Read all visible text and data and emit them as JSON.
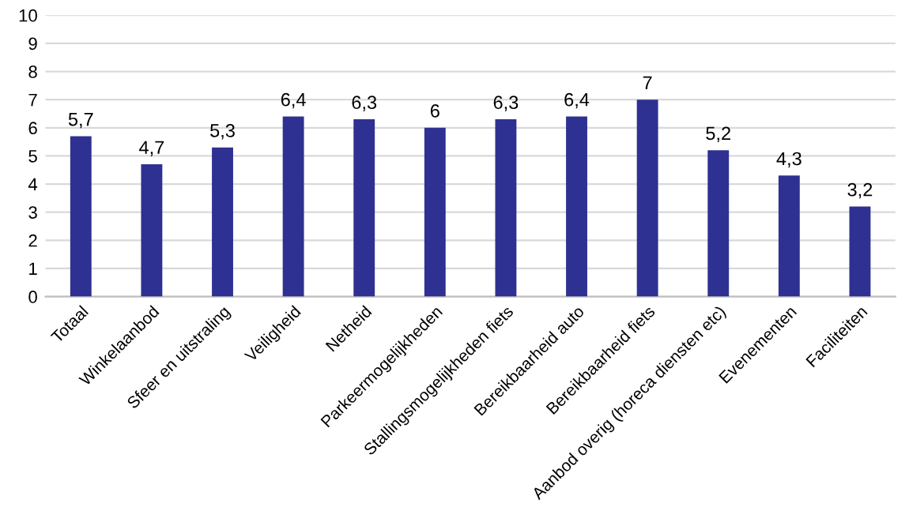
{
  "chart_data": {
    "type": "bar",
    "categories": [
      "Totaal",
      "Winkelaanbod",
      "Sfeer en uitstraling",
      "Veiligheid",
      "Netheid",
      "Parkeermogelijkheden",
      "Stallingsmogelijkheden fiets",
      "Bereikbaarheid auto",
      "Bereikbaarheid fiets",
      "Aanbod overig (horeca diensten etc)",
      "Evenementen",
      "Faciliteiten"
    ],
    "values": [
      5.7,
      4.7,
      5.3,
      6.4,
      6.3,
      6,
      6.3,
      6.4,
      7,
      5.2,
      4.3,
      3.2
    ],
    "value_labels": [
      "5,7",
      "4,7",
      "5,3",
      "6,4",
      "6,3",
      "6",
      "6,3",
      "6,4",
      "7",
      "5,2",
      "4,3",
      "3,2"
    ],
    "color": "#2e3192",
    "ylim": [
      0,
      10
    ],
    "yticks": [
      0,
      1,
      2,
      3,
      4,
      5,
      6,
      7,
      8,
      9,
      10
    ],
    "grid": "y"
  }
}
